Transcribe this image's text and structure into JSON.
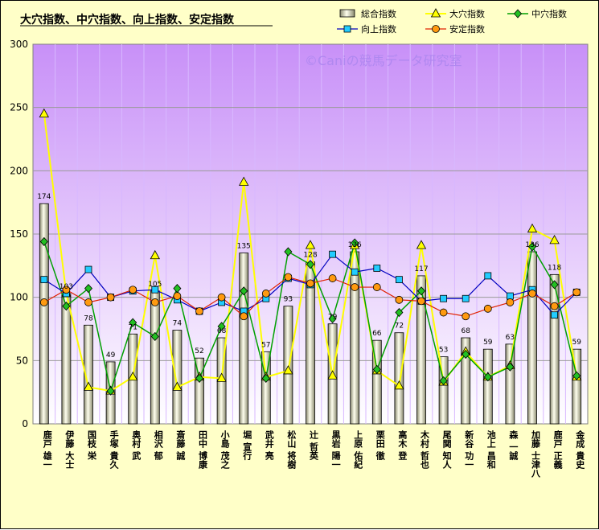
{
  "chart_data": {
    "type": "bar",
    "title": "大穴指数、中穴指数、向上指数、安定指数",
    "watermark": "©Caniの競馬データ研究室",
    "xlabel": "",
    "ylabel": "",
    "ylim": [
      0,
      300
    ],
    "yticks": [
      0,
      50,
      100,
      150,
      200,
      250,
      300
    ],
    "grid": true,
    "legend_position": "top-right",
    "categories": [
      "鹿戸 雄一",
      "伊藤 大士",
      "国枝 栄",
      "手塚 貴久",
      "奥村 武",
      "相沢 郁",
      "斎藤 誠",
      "田中 博康",
      "小島 茂之",
      "堀 宣行",
      "武井 亮",
      "松山 将樹",
      "辻 哲英",
      "黒岩 陽一",
      "上原 佑紀",
      "栗田 徹",
      "高木 登",
      "木村 哲也",
      "尾関 知人",
      "新谷 功一",
      "池上 昌和",
      "森 一誠",
      "加藤 士津八",
      "鹿戸 正義",
      "金成 貴史"
    ],
    "series": [
      {
        "name": "総合指数",
        "kind": "bar",
        "color": "#eeeecc",
        "values": [
          174,
          103,
          78,
          49,
          71,
          105,
          74,
          52,
          68,
          135,
          57,
          93,
          128,
          79,
          136,
          66,
          72,
          117,
          53,
          68,
          59,
          63,
          136,
          118,
          59
        ]
      },
      {
        "name": "大穴指数",
        "kind": "line",
        "marker": "triangle",
        "color": "#ffff00",
        "values": [
          245,
          103,
          29,
          26,
          37,
          133,
          29,
          37,
          36,
          191,
          37,
          42,
          141,
          38,
          141,
          42,
          30,
          141,
          33,
          57,
          37,
          46,
          154,
          145,
          37
        ]
      },
      {
        "name": "中穴指数",
        "kind": "line",
        "marker": "diamond",
        "color": "#00a000",
        "values": [
          144,
          93,
          107,
          26,
          80,
          69,
          107,
          36,
          77,
          105,
          36,
          136,
          126,
          83,
          143,
          43,
          88,
          105,
          34,
          55,
          37,
          45,
          140,
          110,
          38
        ]
      },
      {
        "name": "向上指数",
        "kind": "line",
        "marker": "square",
        "color": "#0000c0",
        "values": [
          114,
          103,
          122,
          100,
          105,
          106,
          98,
          89,
          96,
          89,
          99,
          115,
          110,
          134,
          120,
          123,
          114,
          97,
          99,
          99,
          117,
          101,
          106,
          86,
          104
        ]
      },
      {
        "name": "安定指数",
        "kind": "line",
        "marker": "circle",
        "color": "#e02000",
        "values": [
          96,
          106,
          96,
          100,
          106,
          96,
          101,
          89,
          100,
          85,
          103,
          116,
          111,
          115,
          108,
          108,
          98,
          97,
          88,
          85,
          91,
          96,
          103,
          93,
          104
        ]
      }
    ]
  }
}
